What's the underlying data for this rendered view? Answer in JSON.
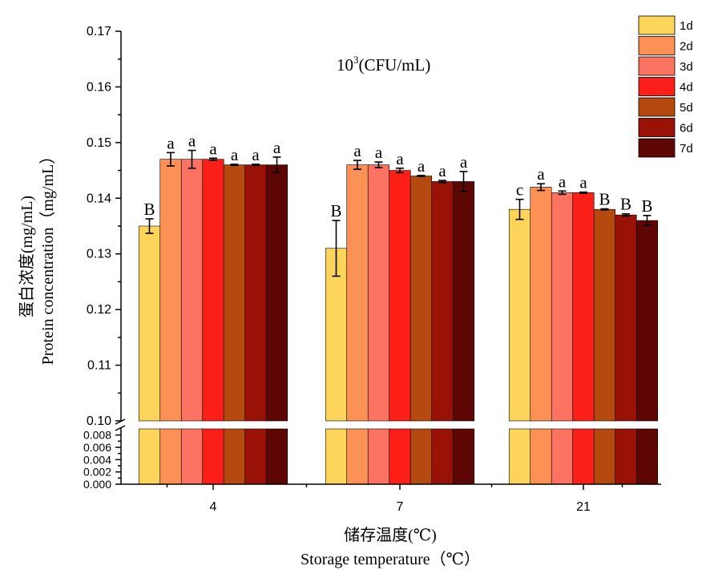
{
  "chart_data": {
    "type": "bar",
    "annotation": "10³(CFU/mL)",
    "annotation_base": "10",
    "annotation_exp": "3",
    "annotation_rest": "(CFU/mL)",
    "xlabel_cn": "储存温度(℃)",
    "xlabel_en": "Storage temperature（℃）",
    "ylabel_cn": "蛋白浓度(mg/mL)",
    "ylabel_en": "Protein concentration（mg/mL）",
    "categories": [
      "4",
      "7",
      "21"
    ],
    "y_axis_break": true,
    "ylim_lower": [
      0,
      0.009
    ],
    "ylim_upper": [
      0.1,
      0.17
    ],
    "yticks_lower": [
      "0.000",
      "0.002",
      "0.004",
      "0.006",
      "0.008"
    ],
    "yticks_upper": [
      "0.10",
      "0.11",
      "0.12",
      "0.13",
      "0.14",
      "0.15",
      "0.16",
      "0.17"
    ],
    "legend_position": "top-right",
    "series": [
      {
        "name": "1d",
        "color": "#FDD45A",
        "values": [
          0.135,
          0.131,
          0.138
        ],
        "errors": [
          0.0013,
          0.005,
          0.0018
        ],
        "letters": [
          "B",
          "B",
          "c"
        ]
      },
      {
        "name": "2d",
        "color": "#FC9155",
        "values": [
          0.147,
          0.146,
          0.142
        ],
        "errors": [
          0.0012,
          0.0008,
          0.0006
        ],
        "letters": [
          "a",
          "a",
          "a"
        ]
      },
      {
        "name": "3d",
        "color": "#FC7461",
        "values": [
          0.147,
          0.146,
          0.141
        ],
        "errors": [
          0.0016,
          0.0005,
          0.0003
        ],
        "letters": [
          "a",
          "a",
          "a"
        ]
      },
      {
        "name": "4d",
        "color": "#FC1F18",
        "values": [
          0.147,
          0.145,
          0.141
        ],
        "errors": [
          0.0002,
          0.0004,
          0.0001
        ],
        "letters": [
          "a",
          "a",
          "a"
        ]
      },
      {
        "name": "5d",
        "color": "#B44A0E",
        "values": [
          0.146,
          0.144,
          0.138
        ],
        "errors": [
          0.0001,
          0.0001,
          0.0001
        ],
        "letters": [
          "a",
          "a",
          "B"
        ]
      },
      {
        "name": "6d",
        "color": "#9A1205",
        "values": [
          0.146,
          0.143,
          0.137
        ],
        "errors": [
          0.0001,
          0.0002,
          0.0002
        ],
        "letters": [
          "a",
          "a",
          "B"
        ]
      },
      {
        "name": "7d",
        "color": "#5E0604",
        "values": [
          0.146,
          0.143,
          0.136
        ],
        "errors": [
          0.0014,
          0.0018,
          0.0009
        ],
        "letters": [
          "a",
          "a",
          "B"
        ]
      }
    ]
  }
}
